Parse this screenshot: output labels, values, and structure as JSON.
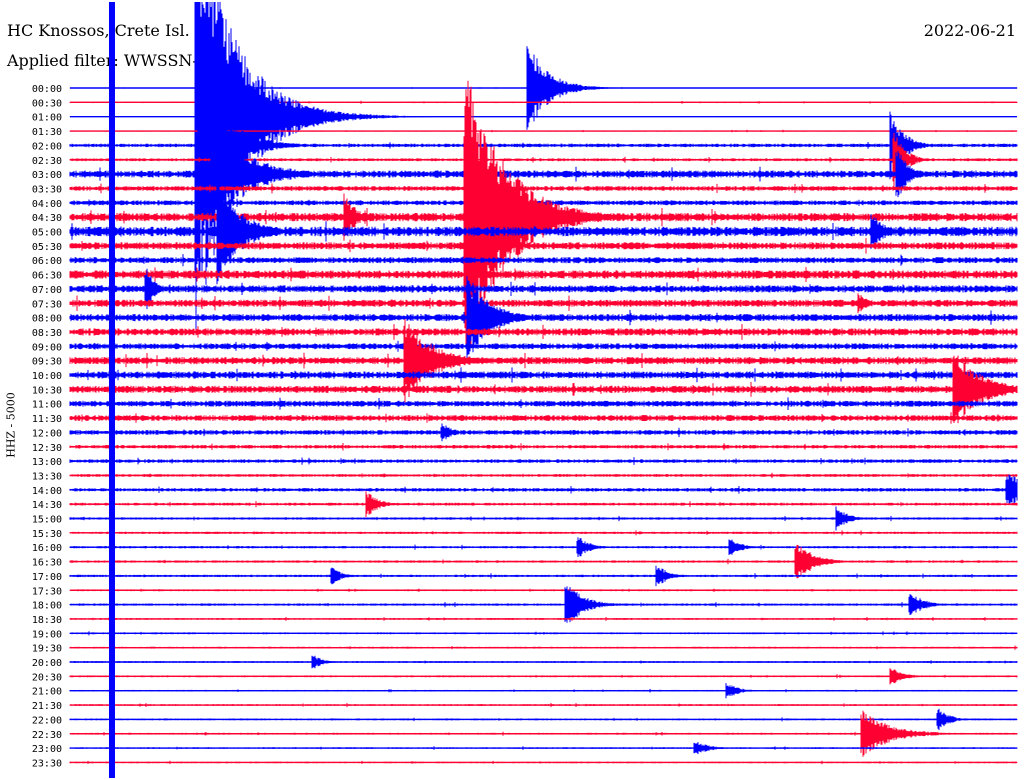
{
  "header": {
    "station": "HC Knossos, Crete Isl.",
    "filter": "Applied filter: WWSSN-SP",
    "date": "2022-06-21"
  },
  "chart_data": {
    "type": "line",
    "title": "HC Knossos, Crete Isl.",
    "subtitle": "Applied filter: WWSSN-SP",
    "date": "2022-06-21",
    "ylabel": "HHZ - 5000",
    "trace_colors": [
      "#0000ff",
      "#ff0033"
    ],
    "rows": [
      "00:00",
      "00:30",
      "01:00",
      "01:30",
      "02:00",
      "02:30",
      "03:00",
      "03:30",
      "04:00",
      "04:30",
      "05:00",
      "05:30",
      "06:00",
      "06:30",
      "07:00",
      "07:30",
      "08:00",
      "08:30",
      "09:00",
      "09:30",
      "10:00",
      "10:30",
      "11:00",
      "11:30",
      "12:00",
      "12:30",
      "13:00",
      "13:30",
      "14:00",
      "14:30",
      "15:00",
      "15:30",
      "16:00",
      "16:30",
      "17:00",
      "17:30",
      "18:00",
      "18:30",
      "19:00",
      "19:30",
      "20:00",
      "20:30",
      "21:00",
      "21:30",
      "22:00",
      "22:30",
      "23:00",
      "23:30"
    ],
    "x_range_minutes": [
      0,
      30
    ],
    "noise_level": [
      0.3,
      0.6,
      0.2,
      0.5,
      1.5,
      1.2,
      3.0,
      2.0,
      2.0,
      3.5,
      4.0,
      3.0,
      2.5,
      3.5,
      3.0,
      3.0,
      3.0,
      3.0,
      2.5,
      3.0,
      3.0,
      3.0,
      2.5,
      2.5,
      2.0,
      1.5,
      1.5,
      1.2,
      1.5,
      1.2,
      1.0,
      1.0,
      1.0,
      1.0,
      1.0,
      0.8,
      1.0,
      0.8,
      0.8,
      0.8,
      0.8,
      0.8,
      0.7,
      0.8,
      0.8,
      0.8,
      0.7,
      0.7
    ],
    "events": [
      {
        "row": 0,
        "minute": 14.5,
        "amplitude": 48,
        "duration_min": 1.8
      },
      {
        "row": 2,
        "minute": 4.0,
        "amplitude": 220,
        "duration_min": 3.5
      },
      {
        "row": 4,
        "minute": 4.1,
        "amplitude": 70,
        "duration_min": 2.5
      },
      {
        "row": 4,
        "minute": 26.0,
        "amplitude": 35,
        "duration_min": 1.2
      },
      {
        "row": 5,
        "minute": 26.1,
        "amplitude": 30,
        "duration_min": 1.0
      },
      {
        "row": 6,
        "minute": 4.5,
        "amplitude": 60,
        "duration_min": 3.0
      },
      {
        "row": 6,
        "minute": 26.2,
        "amplitude": 28,
        "duration_min": 1.0
      },
      {
        "row": 9,
        "minute": 12.5,
        "amplitude": 160,
        "duration_min": 3.5
      },
      {
        "row": 9,
        "minute": 8.7,
        "amplitude": 25,
        "duration_min": 1.0
      },
      {
        "row": 10,
        "minute": 4.7,
        "amplitude": 55,
        "duration_min": 2.0
      },
      {
        "row": 10,
        "minute": 25.4,
        "amplitude": 22,
        "duration_min": 1.0
      },
      {
        "row": 14,
        "minute": 2.4,
        "amplitude": 24,
        "duration_min": 0.8
      },
      {
        "row": 15,
        "minute": 25.0,
        "amplitude": 10,
        "duration_min": 0.8
      },
      {
        "row": 16,
        "minute": 12.6,
        "amplitude": 45,
        "duration_min": 2.0
      },
      {
        "row": 19,
        "minute": 10.6,
        "amplitude": 45,
        "duration_min": 2.5
      },
      {
        "row": 21,
        "minute": 28.0,
        "amplitude": 40,
        "duration_min": 2.5
      },
      {
        "row": 24,
        "minute": 11.8,
        "amplitude": 10,
        "duration_min": 1.0
      },
      {
        "row": 28,
        "minute": 29.7,
        "amplitude": 20,
        "duration_min": 1.5
      },
      {
        "row": 29,
        "minute": 9.4,
        "amplitude": 14,
        "duration_min": 1.0
      },
      {
        "row": 30,
        "minute": 24.3,
        "amplitude": 12,
        "duration_min": 1.0
      },
      {
        "row": 32,
        "minute": 16.1,
        "amplitude": 12,
        "duration_min": 1.0
      },
      {
        "row": 32,
        "minute": 20.9,
        "amplitude": 10,
        "duration_min": 1.0
      },
      {
        "row": 33,
        "minute": 23.0,
        "amplitude": 22,
        "duration_min": 1.5
      },
      {
        "row": 34,
        "minute": 8.3,
        "amplitude": 10,
        "duration_min": 0.8
      },
      {
        "row": 34,
        "minute": 18.6,
        "amplitude": 12,
        "duration_min": 1.0
      },
      {
        "row": 36,
        "minute": 15.7,
        "amplitude": 25,
        "duration_min": 1.5
      },
      {
        "row": 36,
        "minute": 26.6,
        "amplitude": 14,
        "duration_min": 1.2
      },
      {
        "row": 40,
        "minute": 7.7,
        "amplitude": 8,
        "duration_min": 0.8
      },
      {
        "row": 41,
        "minute": 26.0,
        "amplitude": 12,
        "duration_min": 1.0
      },
      {
        "row": 42,
        "minute": 20.8,
        "amplitude": 9,
        "duration_min": 1.0
      },
      {
        "row": 44,
        "minute": 27.5,
        "amplitude": 12,
        "duration_min": 1.0
      },
      {
        "row": 45,
        "minute": 25.1,
        "amplitude": 24,
        "duration_min": 2.5
      },
      {
        "row": 46,
        "minute": 19.8,
        "amplitude": 8,
        "duration_min": 1.2
      }
    ],
    "continuous_signal": {
      "minute": 1.33,
      "color": "#0000ff"
    }
  }
}
